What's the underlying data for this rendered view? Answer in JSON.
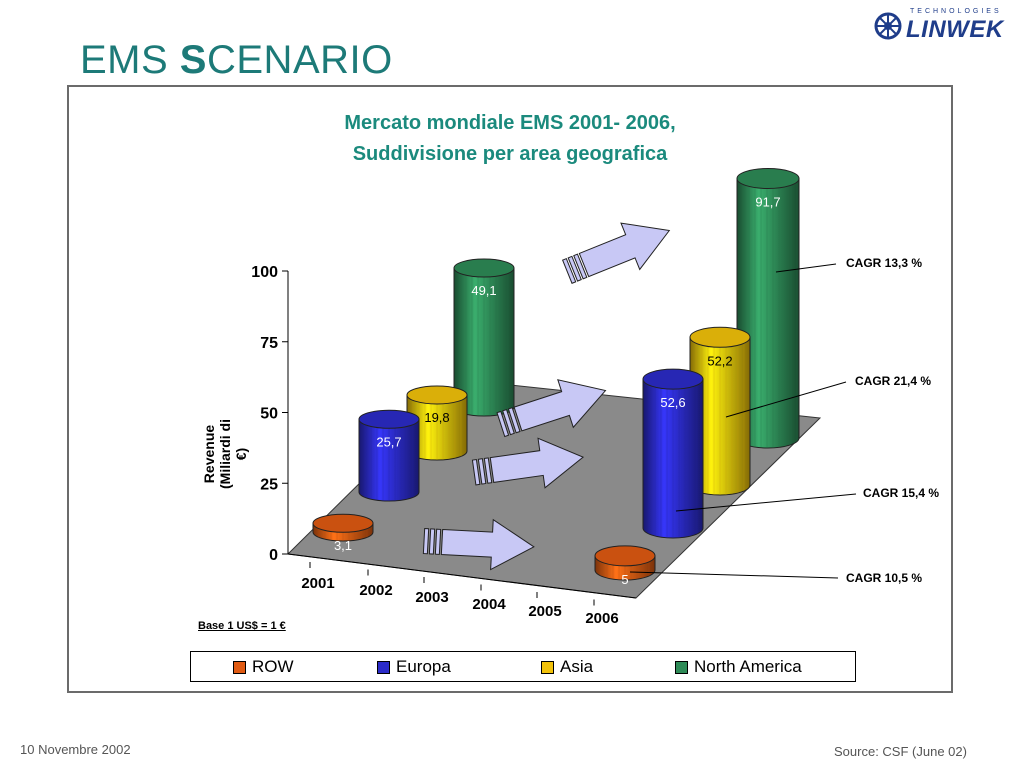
{
  "slide": {
    "title_prefix": "EMS ",
    "title_big_letter": "S",
    "title_suffix": "CENARIO",
    "footer_date": "10 Novembre 2002",
    "footer_source": "Source: CSF (June 02)"
  },
  "logo": {
    "text": "LINWEK",
    "small_text": "TECHNOLOGIES",
    "icon": "gear-wheel-icon",
    "color": "#1f3d8a"
  },
  "colors": {
    "accent": "#1d7a78",
    "floor": "#8a8a8a",
    "arrow": "#c8c8f5"
  },
  "chart_data": {
    "type": "bar",
    "title_line1": "Mercato mondiale EMS 2001- 2006,",
    "title_line2": "Suddivisione per area geografica",
    "ylabel_line1": "Revenue",
    "ylabel_line2": "(Miliardi di €)",
    "xlabel": "",
    "categories": [
      "2001",
      "2002",
      "2003",
      "2004",
      "2005",
      "2006"
    ],
    "ylim": [
      0,
      100
    ],
    "yticks": [
      "0",
      "25",
      "50",
      "75",
      "100"
    ],
    "series": [
      {
        "name": "ROW",
        "color": "#e05a12",
        "values": [
          3.1,
          null,
          null,
          null,
          null,
          5
        ],
        "labels": [
          "3,1",
          "5"
        ]
      },
      {
        "name": "Europa",
        "color": "#2b2bc8",
        "values": [
          25.7,
          null,
          null,
          null,
          null,
          52.6
        ],
        "labels": [
          "25,7",
          "52,6"
        ]
      },
      {
        "name": "Asia",
        "color": "#f2c20a",
        "values": [
          19.8,
          null,
          null,
          null,
          null,
          52.2
        ],
        "labels": [
          "19,8",
          "52,2"
        ]
      },
      {
        "name": "North America",
        "color": "#2e8b57",
        "values": [
          49.1,
          null,
          null,
          null,
          null,
          91.7
        ],
        "labels": [
          "49,1",
          "91,7"
        ]
      }
    ],
    "cagr": [
      {
        "label": "CAGR 13,3  %",
        "series": "North America"
      },
      {
        "label": "CAGR  21,4 %",
        "series": "Asia"
      },
      {
        "label": "CAGR  15,4  %",
        "series": "Europa"
      },
      {
        "label": "CAGR  10,5  %",
        "series": "ROW"
      }
    ],
    "note": "Base 1 US$ = 1 €",
    "legend_position": "bottom"
  }
}
